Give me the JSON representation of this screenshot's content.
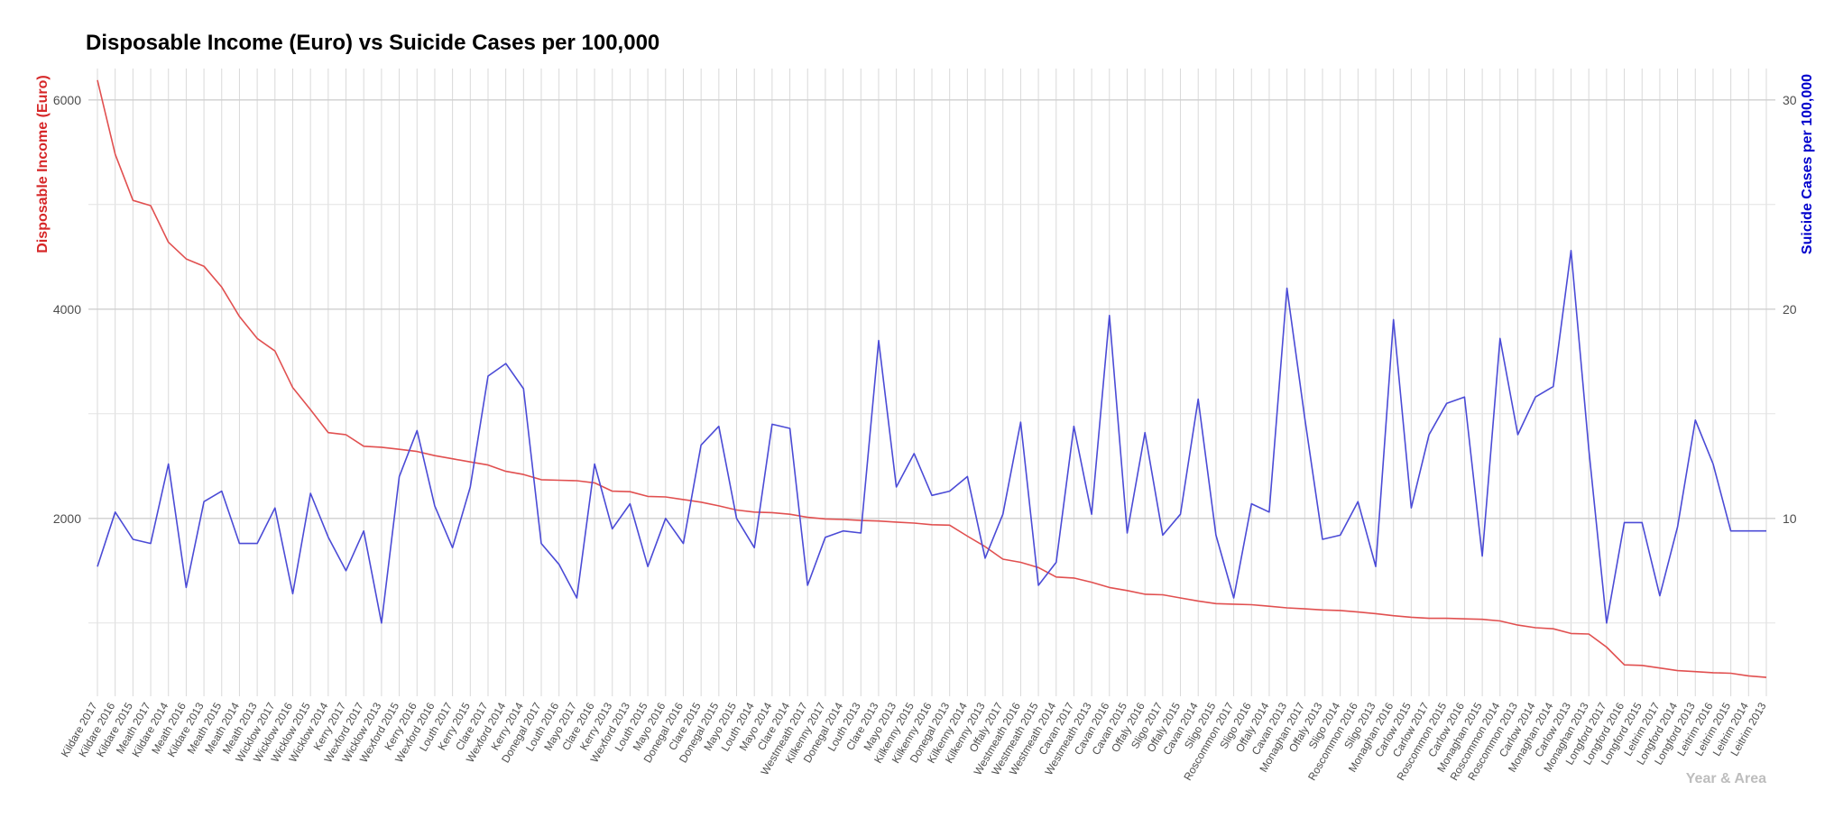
{
  "colors": {
    "income": "#d62728",
    "income_line": "#e15050",
    "suicide": "#0000cc",
    "suicide_line": "#4b4bd6",
    "grid": "#d9d9d9",
    "xlabel": "#bdbdbd"
  },
  "chart_data": {
    "type": "line",
    "title": "Disposable Income (Euro) vs Suicide Cases per 100,000",
    "xlabel": "Year & Area",
    "ylabel_left": "Disposable Income (Euro)",
    "ylabel_right": "Suicide Cases per 100,000",
    "ylim_left": [
      300,
      6300
    ],
    "yticks_left": [
      2000,
      4000,
      6000
    ],
    "yticks_right": [
      10,
      20,
      30
    ],
    "right_axis_scale": "suicide = income / 200",
    "grid": true,
    "categories": [
      "Kildare 2017",
      "Kildare 2016",
      "Kildare 2015",
      "Meath 2017",
      "Kildare 2014",
      "Meath 2016",
      "Kildare 2013",
      "Meath 2015",
      "Meath 2014",
      "Meath 2013",
      "Wicklow 2017",
      "Wicklow 2016",
      "Wicklow 2015",
      "Wicklow 2014",
      "Kerry 2017",
      "Wexford 2017",
      "Wicklow 2013",
      "Wexford 2015",
      "Kerry 2016",
      "Wexford 2016",
      "Louth 2017",
      "Kerry 2015",
      "Clare 2017",
      "Wexford 2014",
      "Kerry 2014",
      "Donegal 2017",
      "Louth 2016",
      "Mayo 2017",
      "Clare 2016",
      "Kerry 2013",
      "Wexford 2013",
      "Louth 2015",
      "Mayo 2016",
      "Donegal 2016",
      "Clare 2015",
      "Donegal 2015",
      "Mayo 2015",
      "Louth 2014",
      "Mayo 2014",
      "Clare 2014",
      "Westmeath 2017",
      "Kilkenny 2017",
      "Donegal 2014",
      "Louth 2013",
      "Clare 2013",
      "Mayo 2013",
      "Kilkenny 2015",
      "Kilkenny 2016",
      "Donegal 2013",
      "Kilkenny 2014",
      "Kilkenny 2013",
      "Offaly 2017",
      "Westmeath 2016",
      "Westmeath 2015",
      "Westmeath 2014",
      "Cavan 2017",
      "Westmeath 2013",
      "Cavan 2016",
      "Cavan 2015",
      "Offaly 2016",
      "Sligo 2017",
      "Offaly 2015",
      "Cavan 2014",
      "Sligo 2015",
      "Roscommon 2017",
      "Sligo 2016",
      "Offaly 2014",
      "Cavan 2013",
      "Monaghan 2017",
      "Offaly 2013",
      "Sligo 2014",
      "Roscommon 2016",
      "Sligo 2013",
      "Monaghan 2016",
      "Carlow 2015",
      "Carlow 2017",
      "Roscommon 2015",
      "Carlow 2016",
      "Monaghan 2015",
      "Roscommon 2014",
      "Roscommon 2013",
      "Carlow 2014",
      "Monaghan 2014",
      "Carlow 2013",
      "Monaghan 2013",
      "Longford 2017",
      "Longford 2016",
      "Longford 2015",
      "Leitrim 2017",
      "Longford 2014",
      "Longford 2013",
      "Leitrim 2016",
      "Leitrim 2015",
      "Leitrim 2014",
      "Leitrim 2013"
    ],
    "series": [
      {
        "name": "Disposable Income (Euro)",
        "axis": "left",
        "values": [
          6190,
          5480,
          5040,
          4990,
          4640,
          4480,
          4410,
          4210,
          3930,
          3720,
          3600,
          3250,
          3040,
          2820,
          2800,
          2690,
          2680,
          2660,
          2640,
          2600,
          2570,
          2540,
          2510,
          2450,
          2420,
          2370,
          2365,
          2360,
          2340,
          2260,
          2255,
          2210,
          2205,
          2180,
          2155,
          2120,
          2080,
          2060,
          2055,
          2040,
          2010,
          1995,
          1990,
          1980,
          1975,
          1965,
          1955,
          1940,
          1935,
          1830,
          1730,
          1610,
          1580,
          1530,
          1440,
          1430,
          1390,
          1340,
          1310,
          1275,
          1270,
          1240,
          1210,
          1185,
          1180,
          1175,
          1160,
          1145,
          1135,
          1125,
          1120,
          1105,
          1090,
          1070,
          1055,
          1045,
          1045,
          1040,
          1035,
          1020,
          980,
          955,
          945,
          900,
          895,
          770,
          600,
          595,
          570,
          545,
          535,
          525,
          520,
          495,
          480
        ]
      },
      {
        "name": "Suicide Cases per 100,000",
        "axis": "right",
        "values": [
          7.7,
          10.3,
          9.0,
          8.8,
          12.6,
          6.7,
          10.8,
          11.3,
          8.8,
          8.8,
          10.5,
          6.4,
          11.2,
          9.1,
          7.5,
          9.4,
          5.0,
          12.0,
          14.2,
          10.6,
          8.6,
          11.5,
          16.8,
          17.4,
          16.2,
          8.8,
          7.8,
          6.2,
          12.6,
          9.5,
          10.7,
          7.7,
          10.0,
          8.8,
          13.5,
          14.4,
          10.0,
          8.6,
          14.5,
          14.3,
          6.8,
          9.1,
          9.4,
          9.3,
          18.5,
          11.5,
          13.1,
          11.1,
          11.3,
          12.0,
          8.1,
          10.2,
          14.6,
          6.8,
          7.9,
          14.4,
          10.2,
          19.7,
          9.3,
          14.1,
          9.2,
          10.2,
          15.7,
          9.2,
          6.2,
          10.7,
          10.3,
          21.0,
          14.8,
          9.0,
          9.2,
          10.8,
          7.7,
          19.5,
          10.5,
          14.0,
          15.5,
          15.8,
          8.2,
          18.6,
          14.0,
          15.8,
          16.3,
          22.8,
          13.3,
          5.0,
          9.8,
          9.8,
          6.3,
          9.6,
          14.7,
          12.6,
          9.4,
          9.4,
          9.4
        ]
      }
    ]
  }
}
